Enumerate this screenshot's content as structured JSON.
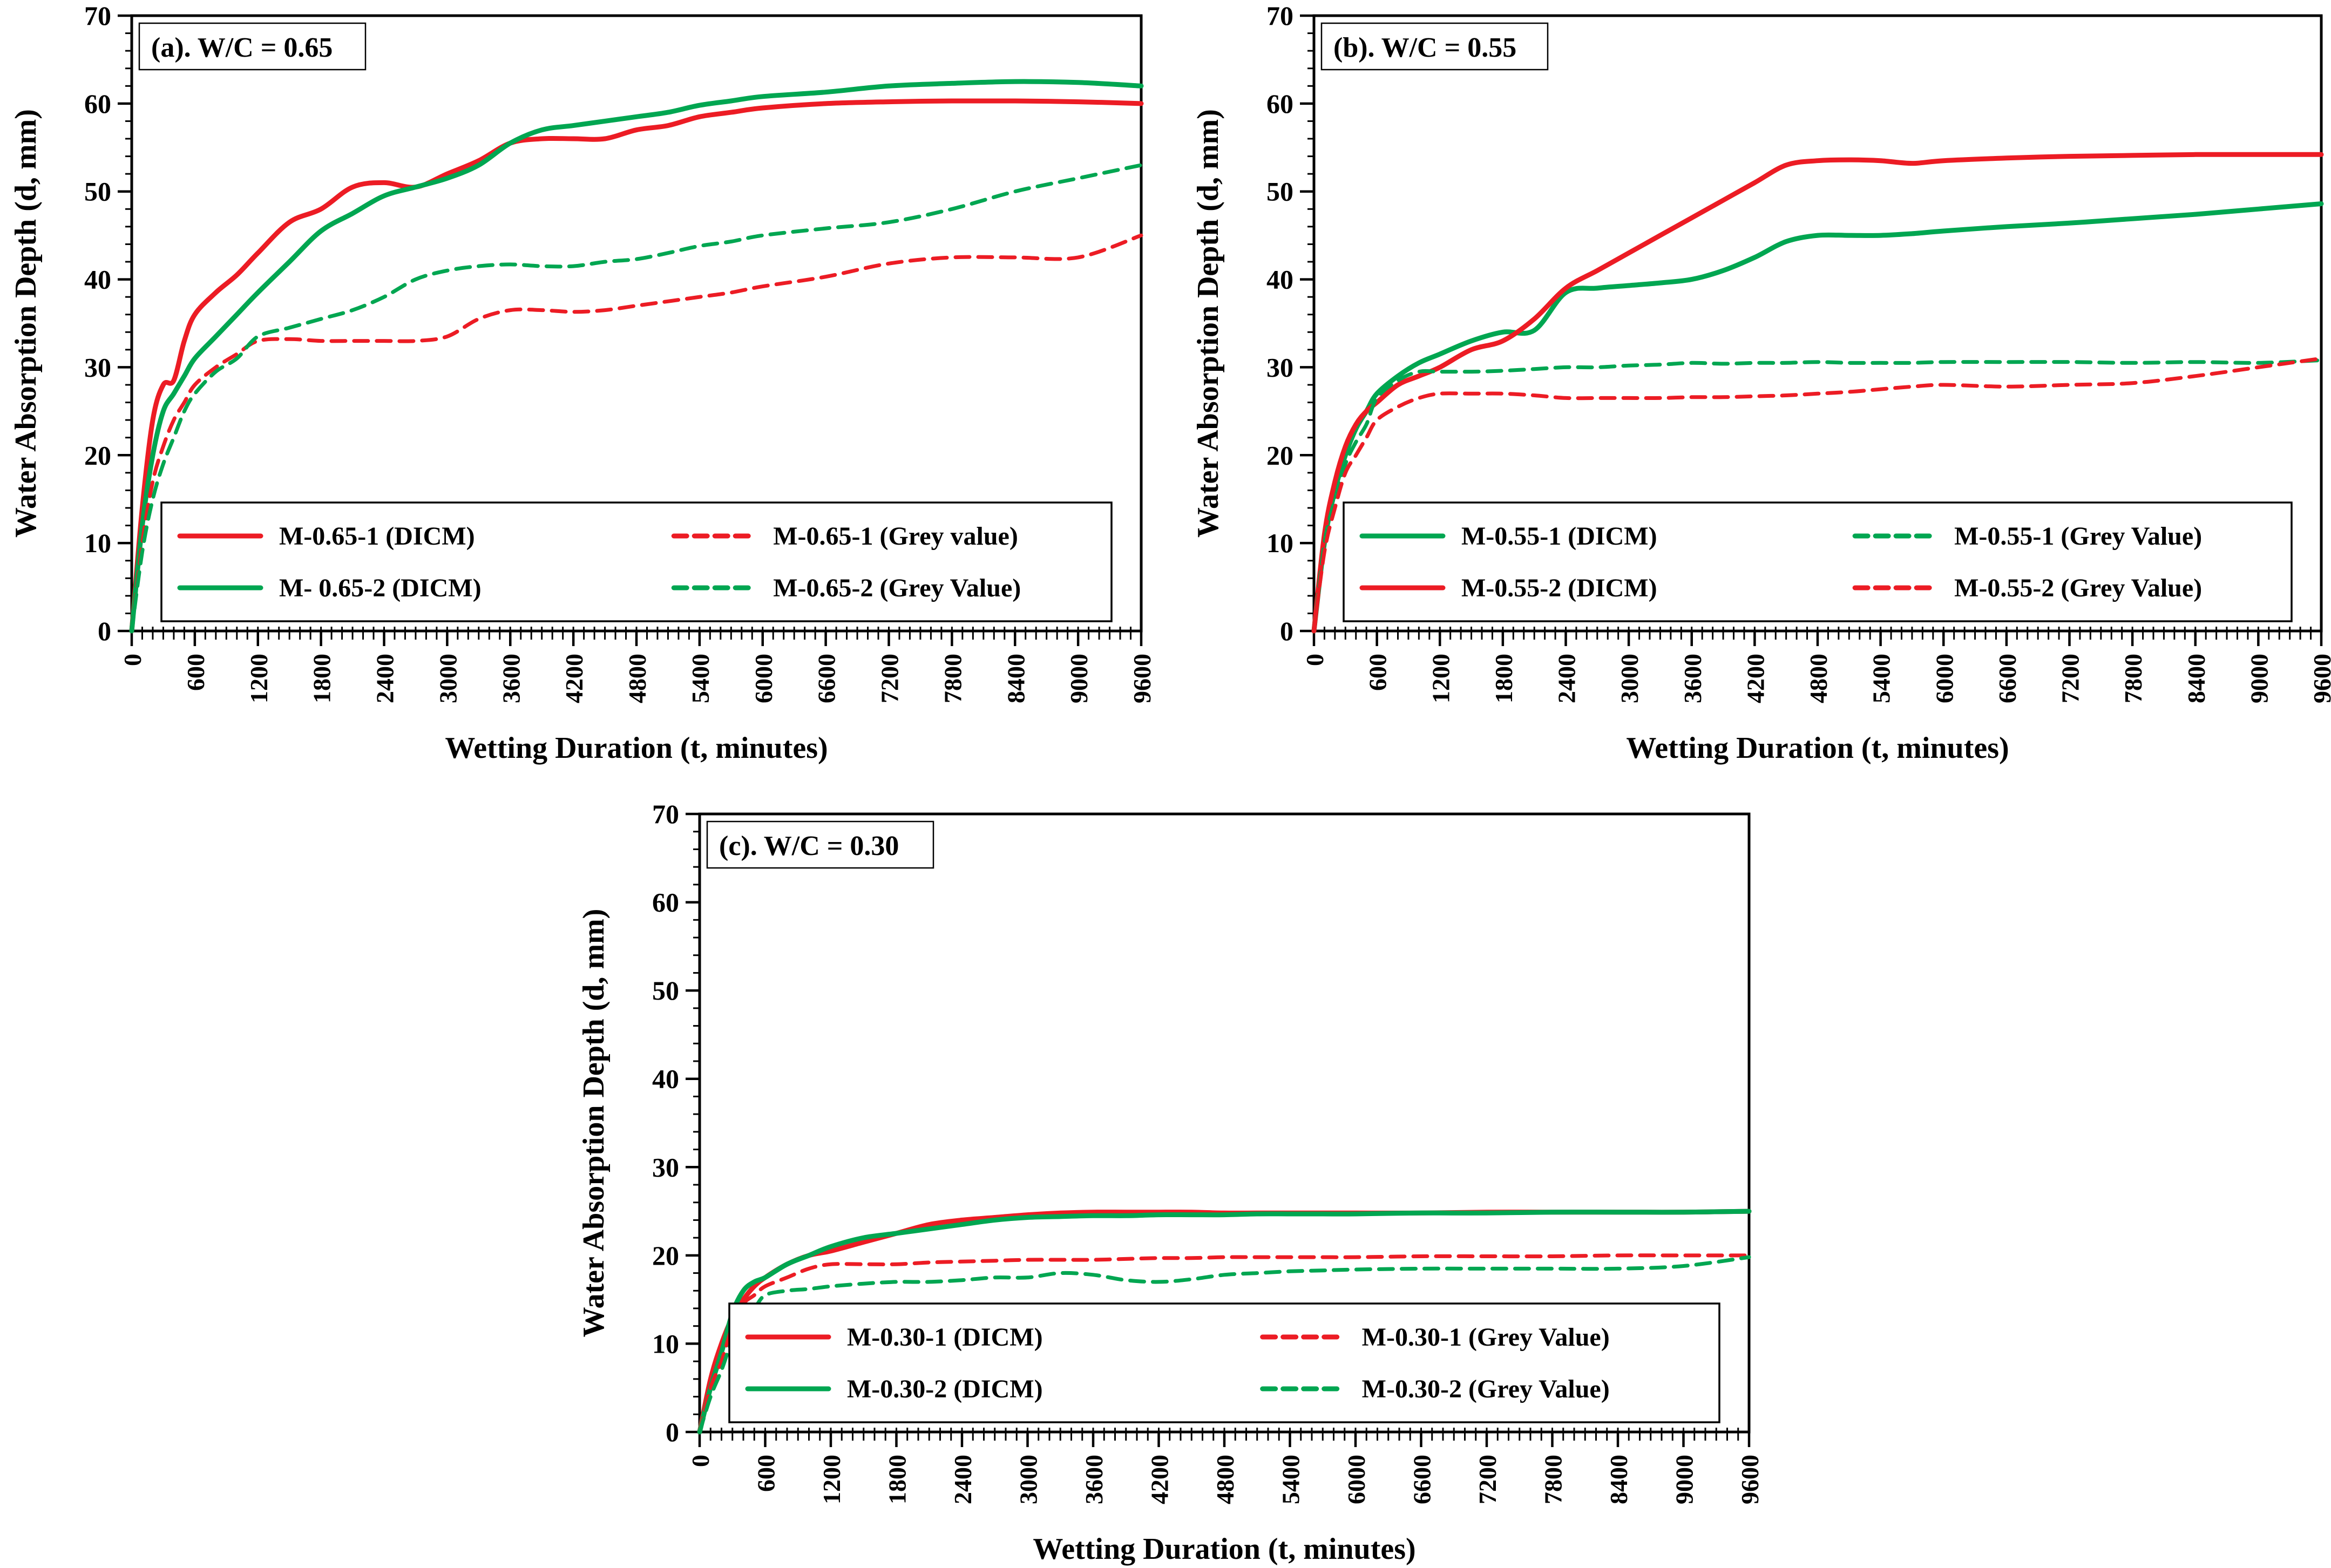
{
  "figure": {
    "background": "#ffffff"
  },
  "colors": {
    "red": "#ec1c24",
    "green": "#00a651",
    "axis": "#000000"
  },
  "chart_data": [
    {
      "id": "a",
      "type": "line",
      "annotation": "(a). W/C = 0.65",
      "xlabel": "Wetting Duration (t, minutes)",
      "ylabel": "Water Absorption Depth (d, mm)",
      "xlim": [
        0,
        9600
      ],
      "ylim": [
        0,
        70
      ],
      "xtick_step": 600,
      "xtick_minor": 100,
      "ytick_step": 10,
      "ytick_minor": 2,
      "grid": false,
      "legend_position": "bottom-inside",
      "x": [
        0,
        100,
        200,
        300,
        400,
        500,
        600,
        800,
        1000,
        1200,
        1500,
        1800,
        2100,
        2400,
        2700,
        3000,
        3300,
        3600,
        3900,
        4200,
        4500,
        4800,
        5100,
        5400,
        5700,
        6000,
        6600,
        7200,
        7800,
        8400,
        9000,
        9600
      ],
      "series": [
        {
          "label": "M-0.65-1  (DICM)",
          "color": "red",
          "style": "solid",
          "values": [
            0,
            14,
            24,
            28,
            28.5,
            33,
            36,
            38.5,
            40.5,
            43,
            46.5,
            48,
            50.5,
            51,
            50.5,
            52,
            53.5,
            55.5,
            56,
            56,
            56,
            57,
            57.5,
            58.5,
            59,
            59.5,
            60,
            60.2,
            60.3,
            60.3,
            60.2,
            60
          ]
        },
        {
          "label": "M- 0.65-2 (DICM)",
          "color": "green",
          "style": "solid",
          "values": [
            0,
            12,
            20,
            25,
            27,
            29,
            31,
            33.5,
            36,
            38.5,
            42,
            45.5,
            47.5,
            49.5,
            50.5,
            51.5,
            53,
            55.5,
            57,
            57.5,
            58,
            58.5,
            59,
            59.8,
            60.3,
            60.8,
            61.3,
            62,
            62.3,
            62.5,
            62.4,
            62
          ]
        },
        {
          "label": "M-0.65-1 (Grey value)",
          "color": "red",
          "style": "dashed",
          "values": [
            0,
            10,
            17,
            21,
            24,
            26,
            28,
            30,
            31.5,
            33,
            33.2,
            33,
            33,
            33,
            33,
            33.5,
            35.5,
            36.5,
            36.5,
            36.3,
            36.5,
            37,
            37.5,
            38,
            38.5,
            39.2,
            40.3,
            41.8,
            42.5,
            42.5,
            42.5,
            45
          ]
        },
        {
          "label": "M-0.65-2 (Grey Value)",
          "color": "green",
          "style": "dashed",
          "values": [
            0,
            9,
            15,
            19,
            22,
            25,
            27,
            29.5,
            31,
            33.5,
            34.5,
            35.5,
            36.5,
            38,
            40,
            41,
            41.5,
            41.7,
            41.5,
            41.5,
            42,
            42.3,
            43,
            43.8,
            44.3,
            45,
            45.8,
            46.5,
            48,
            50,
            51.5,
            53
          ]
        }
      ]
    },
    {
      "id": "b",
      "type": "line",
      "annotation": "(b). W/C = 0.55",
      "xlabel": "Wetting Duration (t, minutes)",
      "ylabel": "Water Absorption Depth (d, mm)",
      "xlim": [
        0,
        9600
      ],
      "ylim": [
        0,
        70
      ],
      "xtick_step": 600,
      "xtick_minor": 100,
      "ytick_step": 10,
      "ytick_minor": 2,
      "grid": false,
      "legend_position": "bottom-inside",
      "x": [
        0,
        100,
        200,
        300,
        400,
        500,
        600,
        800,
        1000,
        1200,
        1500,
        1800,
        2100,
        2400,
        2700,
        3000,
        3300,
        3600,
        3900,
        4200,
        4500,
        4800,
        5100,
        5400,
        5700,
        6000,
        6600,
        7200,
        7800,
        8400,
        9000,
        9600
      ],
      "series": [
        {
          "label": "M-0.55-1 (DICM)",
          "color": "green",
          "style": "solid",
          "values": [
            0,
            10,
            16,
            20,
            23,
            25,
            27,
            29,
            30.5,
            31.5,
            33,
            34,
            34.2,
            38.5,
            39,
            39.3,
            39.6,
            40,
            41,
            42.5,
            44.3,
            45,
            45,
            45,
            45.2,
            45.5,
            46,
            46.4,
            46.9,
            47.4,
            48,
            48.6
          ]
        },
        {
          "label": "M-0.55-2 (DICM)",
          "color": "red",
          "style": "solid",
          "values": [
            0,
            11,
            17,
            21,
            23.5,
            25,
            26,
            28,
            29,
            30,
            32,
            33,
            35.5,
            39,
            41,
            43,
            45,
            47,
            49,
            51,
            53,
            53.5,
            53.6,
            53.5,
            53.2,
            53.5,
            53.8,
            54,
            54.1,
            54.2,
            54.2,
            54.2
          ]
        },
        {
          "label": "M-0.55-1 (Grey Value)",
          "color": "green",
          "style": "dashed",
          "values": [
            0,
            10,
            15,
            19,
            21.5,
            23.5,
            26.5,
            28.5,
            29.5,
            29.5,
            29.5,
            29.6,
            29.8,
            30,
            30,
            30.2,
            30.3,
            30.5,
            30.4,
            30.5,
            30.5,
            30.6,
            30.5,
            30.5,
            30.5,
            30.6,
            30.6,
            30.6,
            30.5,
            30.6,
            30.5,
            30.8
          ]
        },
        {
          "label": "M-0.55-2 (Grey Value)",
          "color": "red",
          "style": "dashed",
          "values": [
            0,
            9,
            14,
            18,
            20,
            22,
            24,
            25.5,
            26.5,
            27,
            27,
            27,
            26.8,
            26.5,
            26.5,
            26.5,
            26.5,
            26.6,
            26.6,
            26.7,
            26.8,
            27,
            27.2,
            27.5,
            27.8,
            28,
            27.8,
            28,
            28.2,
            29,
            30,
            31
          ]
        }
      ]
    },
    {
      "id": "c",
      "type": "line",
      "annotation": "(c). W/C = 0.30",
      "xlabel": "Wetting Duration (t, minutes)",
      "ylabel": "Water Absorption Depth (d, mm)",
      "xlim": [
        0,
        9600
      ],
      "ylim": [
        0,
        70
      ],
      "xtick_step": 600,
      "xtick_minor": 100,
      "ytick_step": 10,
      "ytick_minor": 2,
      "grid": false,
      "legend_position": "bottom-inside",
      "x": [
        0,
        100,
        200,
        300,
        400,
        500,
        600,
        800,
        1000,
        1200,
        1500,
        1800,
        2100,
        2400,
        2700,
        3000,
        3300,
        3600,
        3900,
        4200,
        4500,
        4800,
        5100,
        5400,
        5700,
        6000,
        6600,
        7200,
        7800,
        8400,
        9000,
        9600
      ],
      "series": [
        {
          "label": "M-0.30-1 (DICM)",
          "color": "red",
          "style": "solid",
          "values": [
            0,
            6,
            10,
            13,
            15,
            16.5,
            17.5,
            19,
            20,
            20.5,
            21.5,
            22.5,
            23.5,
            24,
            24.3,
            24.6,
            24.8,
            24.9,
            24.9,
            24.9,
            24.9,
            24.8,
            24.8,
            24.8,
            24.8,
            24.8,
            24.8,
            24.9,
            24.9,
            24.9,
            24.9,
            25
          ]
        },
        {
          "label": "M-0.30-2 (DICM)",
          "color": "green",
          "style": "solid",
          "values": [
            0,
            5,
            9,
            13.5,
            16,
            17,
            17.5,
            19,
            20,
            21,
            22,
            22.5,
            23,
            23.5,
            24,
            24.3,
            24.4,
            24.5,
            24.5,
            24.6,
            24.6,
            24.6,
            24.7,
            24.7,
            24.7,
            24.7,
            24.8,
            24.8,
            24.9,
            24.9,
            24.9,
            25
          ]
        },
        {
          "label": "M-0.30-1 (Grey Value)",
          "color": "red",
          "style": "dashed",
          "values": [
            0,
            5,
            8,
            12,
            14.5,
            15.5,
            16.5,
            17.5,
            18.5,
            19,
            19,
            19,
            19.2,
            19.3,
            19.4,
            19.5,
            19.5,
            19.5,
            19.6,
            19.7,
            19.7,
            19.8,
            19.8,
            19.8,
            19.8,
            19.8,
            19.9,
            19.9,
            19.9,
            20,
            20,
            20
          ]
        },
        {
          "label": "M-0.30-2 (Grey Value)",
          "color": "green",
          "style": "dashed",
          "values": [
            0,
            4,
            7,
            10.5,
            13,
            14,
            15.5,
            16,
            16.2,
            16.5,
            16.8,
            17,
            17,
            17.2,
            17.5,
            17.5,
            18,
            17.8,
            17.2,
            17,
            17.3,
            17.8,
            18,
            18.2,
            18.3,
            18.4,
            18.5,
            18.5,
            18.5,
            18.5,
            18.8,
            19.8
          ]
        }
      ]
    }
  ]
}
